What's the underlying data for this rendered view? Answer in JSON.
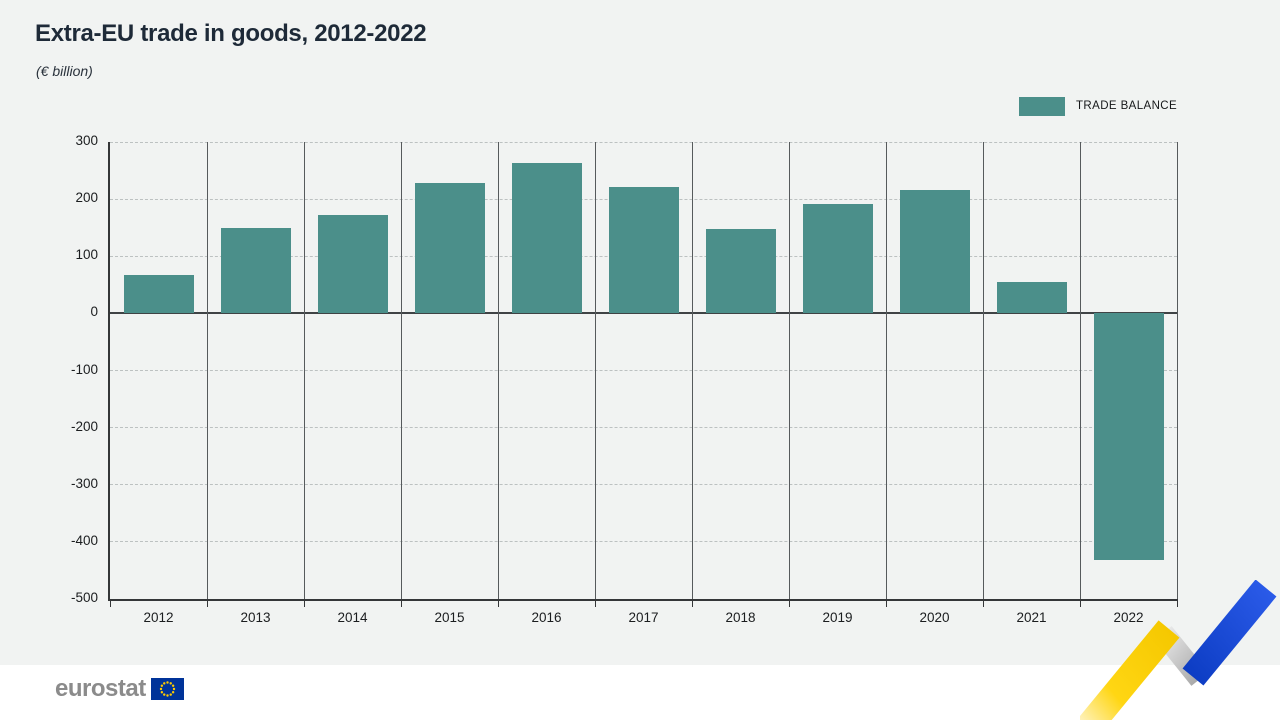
{
  "header": {
    "title": "Extra-EU trade in goods, 2012-2022",
    "subtitle": "(€ billion)"
  },
  "legend": {
    "label": "TRADE BALANCE",
    "color": "#4b8f8a"
  },
  "chart_data": {
    "type": "bar",
    "title": "Extra-EU trade in goods, 2012-2022",
    "unit": "€ billion",
    "series_name": "TRADE BALANCE",
    "categories": [
      "2012",
      "2013",
      "2014",
      "2015",
      "2016",
      "2017",
      "2018",
      "2019",
      "2020",
      "2021",
      "2022"
    ],
    "values": [
      68,
      150,
      172,
      228,
      264,
      222,
      148,
      191,
      216,
      55,
      -432
    ],
    "xlabel": "",
    "ylabel": "€ billion",
    "ylim": [
      -500,
      300
    ],
    "ytick_step": 100,
    "yticks": [
      300,
      200,
      100,
      0,
      -100,
      -200,
      -300,
      -400,
      -500
    ],
    "grid": "horizontal-dashed",
    "zero_line": "solid",
    "legend_position": "top-right",
    "bar_color": "#4b8f8a"
  },
  "footer": {
    "logo_text": "eurostat"
  },
  "colors": {
    "background": "#f1f3f2",
    "footer_background": "#ffffff",
    "title_text": "#1e2a38",
    "axis": "#343638",
    "gridline": "#bcc1c1",
    "eu_flag_blue": "#003399",
    "eu_flag_stars": "#ffcc00",
    "zigzag_yellow": "#fdd10c",
    "zigzag_silver": "#c3c3c3",
    "zigzag_blue": "#1b4fd9"
  }
}
